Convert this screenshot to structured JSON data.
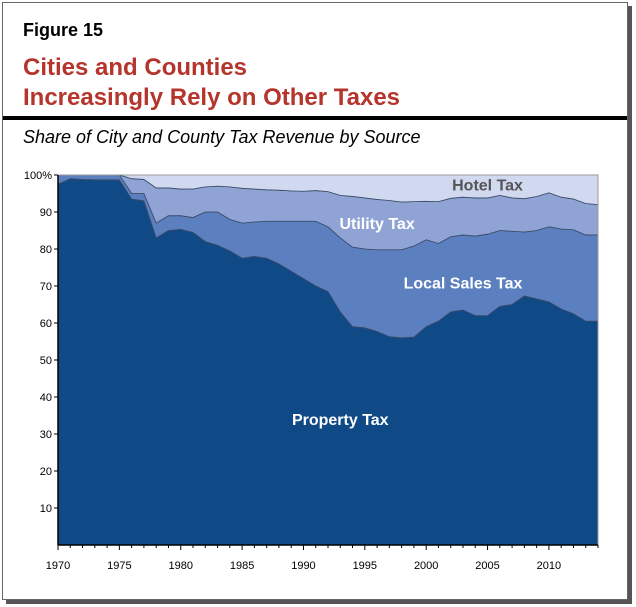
{
  "figure_label": "Figure 15",
  "title_line1": "Cities and Counties",
  "title_line2": "Increasingly Rely on Other Taxes",
  "subtitle": "Share of City and County Tax Revenue by Source",
  "chart_data": {
    "type": "area",
    "stacked": true,
    "title": "Share of City and County Tax Revenue by Source",
    "xlabel": "",
    "ylabel": "",
    "xlim": [
      1970,
      2014
    ],
    "ylim": [
      0,
      100
    ],
    "x_ticks": [
      1970,
      1975,
      1980,
      1985,
      1990,
      1995,
      2000,
      2005,
      2010
    ],
    "y_ticks": [
      "10",
      "20",
      "30",
      "40",
      "50",
      "60",
      "70",
      "80",
      "90",
      "100%"
    ],
    "y_tick_values": [
      10,
      20,
      30,
      40,
      50,
      60,
      70,
      80,
      90,
      100
    ],
    "grid": false,
    "legend": "inline labels",
    "x": [
      1970,
      1971,
      1972,
      1973,
      1974,
      1975,
      1976,
      1977,
      1978,
      1979,
      1980,
      1981,
      1982,
      1983,
      1984,
      1985,
      1986,
      1987,
      1988,
      1989,
      1990,
      1991,
      1992,
      1993,
      1994,
      1995,
      1996,
      1997,
      1998,
      1999,
      2000,
      2001,
      2002,
      2003,
      2004,
      2005,
      2006,
      2007,
      2008,
      2009,
      2010,
      2011,
      2012,
      2013,
      2014
    ],
    "series": [
      {
        "name": "Property Tax",
        "color": "#0f4a87",
        "label_color": "#ffffff",
        "values": [
          97.5,
          99,
          98.8,
          98.7,
          98.7,
          98.7,
          93.5,
          93,
          83,
          85,
          85.3,
          84.5,
          82,
          81,
          79.5,
          77.5,
          78,
          77.5,
          76,
          74,
          72,
          70,
          68.5,
          63,
          59,
          58.7,
          57.7,
          56.3,
          56,
          56.2,
          59,
          60.5,
          63,
          63.5,
          62,
          62,
          64.5,
          65,
          67.3,
          66.5,
          65.7,
          63.8,
          62.5,
          60.5,
          60.5
        ]
      },
      {
        "name": "Local Sales Tax",
        "color": "#5b7fbf",
        "label_color": "#ffffff",
        "values": [
          2.5,
          1,
          1.2,
          1.3,
          1.3,
          1.3,
          1.5,
          2,
          4,
          4,
          3.7,
          4,
          8,
          9,
          8.5,
          9.5,
          9.3,
          10,
          11.5,
          13.5,
          15.5,
          17.5,
          17.5,
          20,
          21.5,
          21.3,
          22.1,
          23.5,
          23.8,
          24.6,
          23.5,
          21,
          20.3,
          20.3,
          21.5,
          22,
          20.5,
          19.8,
          17.3,
          18.5,
          20.3,
          21.6,
          22.7,
          23.3,
          23.3
        ]
      },
      {
        "name": "Utility Tax",
        "color": "#8fa3d4",
        "label_color": "#ffffff",
        "values": [
          0,
          0,
          0,
          0,
          0,
          0,
          4,
          3.8,
          9.5,
          7.5,
          7.2,
          7.7,
          6.8,
          7,
          8.8,
          9.4,
          8.9,
          8.5,
          8.4,
          8.2,
          8.1,
          8.3,
          9.5,
          11.5,
          13.7,
          13.8,
          13.6,
          13.3,
          12.9,
          12,
          10.4,
          11.3,
          10.4,
          10.2,
          10.3,
          9.8,
          9.5,
          9,
          9,
          9.2,
          9.2,
          8.6,
          8.3,
          8.5,
          8.2
        ]
      },
      {
        "name": "Hotel Tax",
        "color": "#d0d9ef",
        "label_color": "#555555",
        "values": [
          0,
          0,
          0,
          0,
          0,
          0,
          1,
          1.2,
          3.5,
          3.5,
          3.8,
          3.8,
          3.2,
          3,
          3.2,
          3.6,
          3.8,
          4,
          4.1,
          4.3,
          4.4,
          4.2,
          4.5,
          5.5,
          5.8,
          6.2,
          6.6,
          6.9,
          7.3,
          7.2,
          7.1,
          7.2,
          6.3,
          6,
          6.2,
          6.2,
          5.5,
          6.2,
          6.4,
          5.8,
          4.8,
          6,
          6.5,
          7.7,
          8
        ]
      }
    ]
  },
  "colors": {
    "title": "#b5352c",
    "rule": "#000000"
  }
}
